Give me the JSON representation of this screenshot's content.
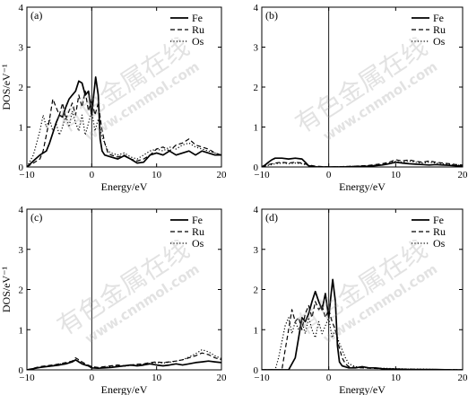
{
  "watermark": {
    "main": "有色金属在线",
    "sub": "www.cnnmol.com"
  },
  "chart_data": [
    {
      "type": "line",
      "panel_label": "(a)",
      "xlabel": "Energy/eV",
      "ylabel": "DOS/eV⁻¹",
      "xlim": [
        -10,
        20
      ],
      "ylim": [
        0,
        4
      ],
      "xticks": [
        -10,
        0,
        10,
        20
      ],
      "yticks": [
        0,
        1,
        2,
        3,
        4
      ],
      "fermi_level": 0,
      "legend_position": "top-right",
      "series": [
        {
          "name": "Fe",
          "dash": "solid",
          "x": [
            -10,
            -9,
            -8,
            -7,
            -6.5,
            -6,
            -5.5,
            -5,
            -4.5,
            -4,
            -3.5,
            -3,
            -2.5,
            -2,
            -1.5,
            -1,
            -0.5,
            0,
            0.3,
            0.6,
            1,
            1.3,
            1.6,
            2,
            3,
            4,
            5,
            6,
            7,
            8,
            9,
            10,
            11,
            12,
            13,
            14,
            15,
            16,
            17,
            18,
            19,
            20
          ],
          "y": [
            0,
            0.15,
            0.3,
            0.4,
            0.6,
            0.85,
            1.1,
            1.3,
            1.25,
            1.5,
            1.7,
            1.8,
            1.9,
            2.15,
            2.1,
            1.8,
            1.9,
            1.3,
            1.8,
            2.25,
            1.8,
            0.7,
            0.4,
            0.3,
            0.25,
            0.2,
            0.28,
            0.2,
            0.1,
            0.12,
            0.3,
            0.35,
            0.3,
            0.4,
            0.3,
            0.35,
            0.4,
            0.3,
            0.4,
            0.35,
            0.3,
            0.3
          ]
        },
        {
          "name": "Ru",
          "dash": "dashed",
          "x": [
            -10,
            -9,
            -8,
            -7.5,
            -7,
            -6.5,
            -6,
            -5.5,
            -5,
            -4.5,
            -4,
            -3.5,
            -3,
            -2.5,
            -2,
            -1.5,
            -1,
            -0.5,
            0,
            0.5,
            1,
            1.5,
            2,
            2.5,
            3,
            4,
            5,
            6,
            7,
            8,
            9,
            10,
            11,
            12,
            13,
            14,
            15,
            16,
            17,
            18,
            19,
            20
          ],
          "y": [
            0,
            0.1,
            0.2,
            0.4,
            0.8,
            1.2,
            1.7,
            1.5,
            1.3,
            1.6,
            1.2,
            1.4,
            1.6,
            1.3,
            1.8,
            1.5,
            1.9,
            1.4,
            1.7,
            1.3,
            1.6,
            1.0,
            0.6,
            0.35,
            0.3,
            0.25,
            0.3,
            0.2,
            0.15,
            0.2,
            0.3,
            0.45,
            0.5,
            0.4,
            0.55,
            0.6,
            0.7,
            0.55,
            0.5,
            0.45,
            0.35,
            0.3
          ]
        },
        {
          "name": "Os",
          "dash": "dotted",
          "x": [
            -10,
            -9,
            -8.5,
            -8,
            -7.5,
            -7,
            -6.5,
            -6,
            -5.5,
            -5,
            -4.5,
            -4,
            -3.5,
            -3,
            -2.5,
            -2,
            -1.5,
            -1,
            -0.5,
            0,
            0.5,
            1,
            1.5,
            2,
            2.5,
            3,
            4,
            5,
            6,
            7,
            8,
            9,
            10,
            11,
            12,
            13,
            14,
            15,
            16,
            17,
            18,
            19,
            20
          ],
          "y": [
            0,
            0.3,
            0.6,
            0.9,
            1.3,
            1.0,
            1.2,
            0.9,
            1.1,
            0.8,
            1.0,
            1.3,
            1.0,
            1.4,
            1.1,
            0.9,
            1.3,
            0.8,
            1.1,
            1.4,
            0.9,
            1.2,
            0.8,
            0.6,
            0.4,
            0.35,
            0.3,
            0.35,
            0.25,
            0.2,
            0.3,
            0.4,
            0.45,
            0.4,
            0.5,
            0.45,
            0.55,
            0.6,
            0.5,
            0.45,
            0.4,
            0.35,
            0.3
          ]
        }
      ]
    },
    {
      "type": "line",
      "panel_label": "(b)",
      "xlabel": "Energy/eV",
      "ylabel": "",
      "xlim": [
        -10,
        20
      ],
      "ylim": [
        0,
        4
      ],
      "xticks": [
        -10,
        0,
        10,
        20
      ],
      "yticks": [
        0,
        1,
        2,
        3,
        4
      ],
      "fermi_level": 0,
      "legend_position": "top-right",
      "series": [
        {
          "name": "Fe",
          "dash": "solid",
          "x": [
            -10,
            -9.5,
            -9,
            -8.5,
            -8,
            -7,
            -6,
            -5,
            -4,
            -3.5,
            -3,
            -2.5,
            -2,
            -1,
            0,
            2,
            4,
            6,
            8,
            9,
            10,
            11,
            12,
            13,
            14,
            15,
            16,
            17,
            18,
            19,
            20
          ],
          "y": [
            0,
            0.05,
            0.12,
            0.18,
            0.22,
            0.22,
            0.2,
            0.22,
            0.2,
            0.12,
            0.03,
            0.01,
            0,
            0,
            0,
            0,
            0.01,
            0.02,
            0.05,
            0.08,
            0.12,
            0.1,
            0.08,
            0.07,
            0.06,
            0.05,
            0.06,
            0.05,
            0.04,
            0.03,
            0.03
          ]
        },
        {
          "name": "Ru",
          "dash": "dashed",
          "x": [
            -10,
            -9,
            -8,
            -7,
            -6,
            -5,
            -4,
            -3,
            -2,
            0,
            2,
            4,
            6,
            8,
            9,
            10,
            11,
            12,
            13,
            14,
            15,
            16,
            17,
            18,
            19,
            20
          ],
          "y": [
            0,
            0.06,
            0.1,
            0.12,
            0.1,
            0.12,
            0.1,
            0.05,
            0.02,
            0,
            0.01,
            0.02,
            0.04,
            0.08,
            0.12,
            0.18,
            0.15,
            0.18,
            0.14,
            0.12,
            0.15,
            0.12,
            0.1,
            0.08,
            0.06,
            0.05
          ]
        },
        {
          "name": "Os",
          "dash": "dotted",
          "x": [
            -10,
            -9,
            -8,
            -7,
            -6,
            -5,
            -4,
            -3,
            -2,
            0,
            2,
            4,
            6,
            8,
            9,
            10,
            11,
            12,
            13,
            14,
            15,
            16,
            17,
            18,
            19,
            20
          ],
          "y": [
            0,
            0.04,
            0.08,
            0.1,
            0.08,
            0.1,
            0.08,
            0.04,
            0.01,
            0,
            0.01,
            0.02,
            0.03,
            0.06,
            0.1,
            0.14,
            0.12,
            0.15,
            0.12,
            0.1,
            0.12,
            0.1,
            0.08,
            0.06,
            0.05,
            0.04
          ]
        }
      ]
    },
    {
      "type": "line",
      "panel_label": "(c)",
      "xlabel": "Energy/eV",
      "ylabel": "DOS/eV⁻¹",
      "xlim": [
        -10,
        20
      ],
      "ylim": [
        0,
        4
      ],
      "xticks": [
        -10,
        0,
        10,
        20
      ],
      "yticks": [
        0,
        1,
        2,
        3,
        4
      ],
      "fermi_level": 0,
      "legend_position": "top-right",
      "series": [
        {
          "name": "Fe",
          "dash": "solid",
          "x": [
            -10,
            -9,
            -8,
            -7,
            -6,
            -5,
            -4,
            -3,
            -2.5,
            -2,
            -1.5,
            -1,
            -0.5,
            0,
            1,
            2,
            3,
            4,
            5,
            6,
            7,
            8,
            9,
            10,
            11,
            12,
            13,
            14,
            15,
            16,
            17,
            18,
            19,
            20
          ],
          "y": [
            0,
            0.03,
            0.06,
            0.08,
            0.1,
            0.12,
            0.15,
            0.2,
            0.25,
            0.2,
            0.15,
            0.12,
            0.1,
            0.05,
            0.04,
            0.05,
            0.06,
            0.08,
            0.1,
            0.12,
            0.1,
            0.12,
            0.15,
            0.12,
            0.1,
            0.12,
            0.15,
            0.12,
            0.15,
            0.18,
            0.2,
            0.22,
            0.2,
            0.18
          ]
        },
        {
          "name": "Ru",
          "dash": "dashed",
          "x": [
            -10,
            -9,
            -8,
            -7,
            -6,
            -5,
            -4,
            -3,
            -2.5,
            -2,
            -1.5,
            -1,
            0,
            1,
            2,
            3,
            4,
            5,
            6,
            7,
            8,
            9,
            10,
            11,
            12,
            13,
            14,
            15,
            16,
            17,
            18,
            19,
            20
          ],
          "y": [
            0,
            0.04,
            0.08,
            0.1,
            0.12,
            0.15,
            0.18,
            0.22,
            0.3,
            0.25,
            0.2,
            0.15,
            0.08,
            0.06,
            0.08,
            0.1,
            0.12,
            0.1,
            0.12,
            0.14,
            0.15,
            0.18,
            0.2,
            0.18,
            0.2,
            0.22,
            0.25,
            0.3,
            0.35,
            0.42,
            0.38,
            0.3,
            0.25
          ]
        },
        {
          "name": "Os",
          "dash": "dotted",
          "x": [
            -10,
            -9,
            -8,
            -7,
            -6,
            -5,
            -4,
            -3,
            -2.5,
            -2,
            -1.5,
            -1,
            0,
            1,
            2,
            3,
            4,
            5,
            6,
            7,
            8,
            9,
            10,
            11,
            12,
            13,
            14,
            15,
            16,
            17,
            18,
            19,
            20
          ],
          "y": [
            0,
            0.03,
            0.06,
            0.09,
            0.11,
            0.14,
            0.17,
            0.2,
            0.24,
            0.22,
            0.18,
            0.12,
            0.06,
            0.05,
            0.07,
            0.09,
            0.1,
            0.09,
            0.11,
            0.13,
            0.14,
            0.16,
            0.18,
            0.17,
            0.19,
            0.22,
            0.25,
            0.32,
            0.4,
            0.5,
            0.45,
            0.35,
            0.28
          ]
        }
      ]
    },
    {
      "type": "line",
      "panel_label": "(d)",
      "xlabel": "Energy/eV",
      "ylabel": "",
      "xlim": [
        -10,
        20
      ],
      "ylim": [
        0,
        4
      ],
      "xticks": [
        -10,
        0,
        10,
        20
      ],
      "yticks": [
        0,
        1,
        2,
        3,
        4
      ],
      "fermi_level": 0,
      "legend_position": "top-right",
      "series": [
        {
          "name": "Fe",
          "dash": "solid",
          "x": [
            -10,
            -6,
            -5,
            -4.5,
            -4,
            -3.5,
            -3,
            -2.5,
            -2,
            -1.5,
            -1,
            -0.5,
            0,
            0.3,
            0.6,
            1,
            1.3,
            1.6,
            2,
            3,
            4,
            5,
            6,
            7,
            8,
            9,
            10,
            12,
            14,
            16,
            18,
            20
          ],
          "y": [
            0,
            0,
            0.3,
            0.8,
            1.3,
            1.2,
            1.4,
            1.7,
            1.95,
            1.7,
            1.5,
            1.9,
            1.3,
            1.8,
            2.25,
            1.7,
            0.6,
            0.2,
            0.1,
            0.05,
            0.05,
            0.08,
            0.05,
            0.05,
            0.03,
            0.02,
            0.02,
            0.01,
            0.01,
            0.01,
            0,
            0
          ]
        },
        {
          "name": "Ru",
          "dash": "dashed",
          "x": [
            -10,
            -7,
            -6.5,
            -6,
            -5.5,
            -5,
            -4.5,
            -4,
            -3.5,
            -3,
            -2.5,
            -2,
            -1.5,
            -1,
            -0.5,
            0,
            0.5,
            1,
            1.5,
            2,
            2.5,
            3,
            4,
            5,
            6,
            8,
            10,
            12,
            14,
            16,
            18,
            20
          ],
          "y": [
            0,
            0,
            0.5,
            1.0,
            1.5,
            1.2,
            1.3,
            1.0,
            1.4,
            1.6,
            1.3,
            1.7,
            1.5,
            1.6,
            1.3,
            1.5,
            1.2,
            1.0,
            0.6,
            0.3,
            0.15,
            0.08,
            0.06,
            0.05,
            0.04,
            0.03,
            0.02,
            0.02,
            0.01,
            0.01,
            0.01,
            0
          ]
        },
        {
          "name": "Os",
          "dash": "dotted",
          "x": [
            -10,
            -8,
            -7.5,
            -7,
            -6.5,
            -6,
            -5.5,
            -5,
            -4.5,
            -4,
            -3.5,
            -3,
            -2.5,
            -2,
            -1.5,
            -1,
            -0.5,
            0,
            0.5,
            1,
            1.5,
            2,
            2.5,
            3,
            4,
            5,
            6,
            8,
            10,
            12,
            14,
            16,
            18,
            20
          ],
          "y": [
            0,
            0,
            0.3,
            0.7,
            1.1,
            1.3,
            0.9,
            1.2,
            1.0,
            1.2,
            0.9,
            1.3,
            1.0,
            0.8,
            1.2,
            0.9,
            1.1,
            1.3,
            0.8,
            1.0,
            0.7,
            0.5,
            0.3,
            0.15,
            0.08,
            0.06,
            0.05,
            0.04,
            0.03,
            0.02,
            0.02,
            0.01,
            0.01,
            0
          ]
        }
      ]
    }
  ]
}
